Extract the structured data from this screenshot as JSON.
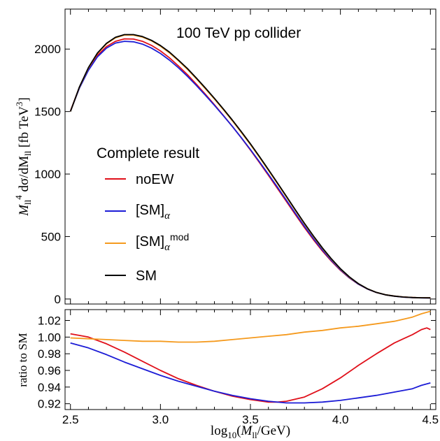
{
  "chart_data": [
    {
      "type": "line",
      "title": "100 TeV pp collider",
      "ylabel": "M_ll^4 dσ/dM_ll [fb TeV^3]",
      "xlim": [
        2.47,
        4.53
      ],
      "ylim": [
        -40,
        2320
      ],
      "x_ticks": [
        "2.5",
        "3.0",
        "3.5",
        "4.0",
        "4.5"
      ],
      "y_ticks": [
        0,
        500,
        1000,
        1500,
        2000
      ],
      "legend_title": "Complete result",
      "legend_placement": "center-left",
      "grid": false,
      "series": [
        {
          "name": "noEW",
          "color": "#e0101a",
          "x": [
            2.5,
            2.55,
            2.6,
            2.65,
            2.7,
            2.75,
            2.8,
            2.85,
            2.9,
            2.95,
            3.0,
            3.05,
            3.1,
            3.15,
            3.2,
            3.25,
            3.3,
            3.35,
            3.4,
            3.45,
            3.5,
            3.55,
            3.6,
            3.65,
            3.7,
            3.75,
            3.8,
            3.85,
            3.9,
            3.95,
            4.0,
            4.05,
            4.1,
            4.15,
            4.2,
            4.25,
            4.3,
            4.35,
            4.4,
            4.45,
            4.5
          ],
          "y": [
            1505,
            1695,
            1840,
            1950,
            2020,
            2062,
            2082,
            2080,
            2062,
            2030,
            1985,
            1930,
            1865,
            1795,
            1718,
            1638,
            1555,
            1468,
            1380,
            1288,
            1192,
            1092,
            990,
            885,
            780,
            675,
            572,
            475,
            384,
            302,
            230,
            168,
            118,
            80,
            52,
            34,
            23,
            16,
            12,
            10,
            9
          ]
        },
        {
          "name": "[SM]α",
          "color": "#1c1cd6",
          "x": [
            2.5,
            2.55,
            2.6,
            2.65,
            2.7,
            2.75,
            2.8,
            2.85,
            2.9,
            2.95,
            3.0,
            3.05,
            3.1,
            3.15,
            3.2,
            3.25,
            3.3,
            3.35,
            3.4,
            3.45,
            3.5,
            3.55,
            3.6,
            3.65,
            3.7,
            3.75,
            3.8,
            3.85,
            3.9,
            3.95,
            4.0,
            4.05,
            4.1,
            4.15,
            4.2,
            4.25,
            4.3,
            4.35,
            4.4,
            4.45,
            4.5
          ],
          "y": [
            1502,
            1688,
            1830,
            1938,
            2008,
            2048,
            2062,
            2058,
            2040,
            2008,
            1965,
            1912,
            1850,
            1782,
            1708,
            1630,
            1550,
            1466,
            1380,
            1290,
            1196,
            1098,
            998,
            895,
            790,
            685,
            582,
            484,
            392,
            308,
            234,
            170,
            119,
            80,
            52,
            33,
            22,
            15,
            11,
            9,
            8
          ]
        },
        {
          "name": "[SM]α^mod",
          "color": "#f59a1e",
          "x": [
            2.5,
            2.55,
            2.6,
            2.65,
            2.7,
            2.75,
            2.8,
            2.85,
            2.9,
            2.95,
            3.0,
            3.05,
            3.1,
            3.15,
            3.2,
            3.25,
            3.3,
            3.35,
            3.4,
            3.45,
            3.5,
            3.55,
            3.6,
            3.65,
            3.7,
            3.75,
            3.8,
            3.85,
            3.9,
            3.95,
            4.0,
            4.05,
            4.1,
            4.15,
            4.2,
            4.25,
            4.3,
            4.35,
            4.4,
            4.45,
            4.5
          ],
          "y": [
            1500,
            1696,
            1848,
            1965,
            2042,
            2090,
            2112,
            2112,
            2096,
            2066,
            2023,
            1970,
            1906,
            1838,
            1762,
            1682,
            1600,
            1514,
            1425,
            1332,
            1236,
            1134,
            1030,
            923,
            815,
            707,
            601,
            500,
            405,
            318,
            241,
            175,
            122,
            82,
            53,
            34,
            23,
            16,
            12,
            10,
            9
          ]
        },
        {
          "name": "SM",
          "color": "#000000",
          "x": [
            2.5,
            2.55,
            2.6,
            2.65,
            2.7,
            2.75,
            2.8,
            2.85,
            2.9,
            2.95,
            3.0,
            3.05,
            3.1,
            3.15,
            3.2,
            3.25,
            3.3,
            3.35,
            3.4,
            3.45,
            3.5,
            3.55,
            3.6,
            3.65,
            3.7,
            3.75,
            3.8,
            3.85,
            3.9,
            3.95,
            4.0,
            4.05,
            4.1,
            4.15,
            4.2,
            4.25,
            4.3,
            4.35,
            4.4,
            4.45,
            4.5
          ],
          "y": [
            1500,
            1698,
            1852,
            1968,
            2046,
            2094,
            2116,
            2116,
            2100,
            2070,
            2028,
            1976,
            1912,
            1844,
            1768,
            1688,
            1606,
            1520,
            1431,
            1338,
            1242,
            1140,
            1036,
            929,
            821,
            713,
            606,
            505,
            409,
            321,
            243,
            177,
            123,
            82,
            53,
            34,
            23,
            16,
            12,
            10,
            9
          ]
        }
      ]
    },
    {
      "type": "line",
      "xlabel": "log10(M_ll/GeV)",
      "ylabel": "ratio to SM",
      "xlim": [
        2.47,
        4.53
      ],
      "ylim": [
        0.913,
        1.033
      ],
      "x_ticks": [
        "2.5",
        "3.0",
        "3.5",
        "4.0",
        "4.5"
      ],
      "y_ticks": [
        "0.92",
        "0.94",
        "0.96",
        "0.98",
        "1.00",
        "1.02"
      ],
      "series": [
        {
          "name": "noEW",
          "color": "#e0101a",
          "x": [
            2.5,
            2.6,
            2.7,
            2.8,
            2.9,
            3.0,
            3.1,
            3.2,
            3.3,
            3.4,
            3.5,
            3.6,
            3.65,
            3.7,
            3.8,
            3.9,
            4.0,
            4.1,
            4.2,
            4.3,
            4.35,
            4.4,
            4.45,
            4.48,
            4.5
          ],
          "y": [
            1.004,
            1.0,
            0.992,
            0.982,
            0.971,
            0.96,
            0.95,
            0.942,
            0.935,
            0.929,
            0.925,
            0.922,
            0.922,
            0.923,
            0.928,
            0.938,
            0.951,
            0.966,
            0.98,
            0.993,
            0.998,
            1.003,
            1.009,
            1.011,
            1.009
          ]
        },
        {
          "name": "[SM]α",
          "color": "#1c1cd6",
          "x": [
            2.5,
            2.6,
            2.7,
            2.8,
            2.9,
            3.0,
            3.1,
            3.2,
            3.3,
            3.4,
            3.5,
            3.6,
            3.7,
            3.8,
            3.9,
            4.0,
            4.1,
            4.2,
            4.3,
            4.4,
            4.45,
            4.5
          ],
          "y": [
            0.993,
            0.987,
            0.979,
            0.97,
            0.962,
            0.954,
            0.947,
            0.941,
            0.935,
            0.93,
            0.926,
            0.923,
            0.921,
            0.921,
            0.922,
            0.924,
            0.927,
            0.93,
            0.934,
            0.938,
            0.942,
            0.945
          ]
        },
        {
          "name": "[SM]α^mod",
          "color": "#f59a1e",
          "x": [
            2.5,
            2.6,
            2.7,
            2.8,
            2.9,
            3.0,
            3.1,
            3.2,
            3.3,
            3.4,
            3.5,
            3.6,
            3.7,
            3.8,
            3.9,
            4.0,
            4.1,
            4.2,
            4.3,
            4.4,
            4.45,
            4.5
          ],
          "y": [
            0.999,
            0.998,
            0.997,
            0.996,
            0.995,
            0.995,
            0.994,
            0.994,
            0.995,
            0.997,
            0.999,
            1.001,
            1.003,
            1.006,
            1.008,
            1.011,
            1.013,
            1.016,
            1.019,
            1.024,
            1.028,
            1.031
          ]
        }
      ]
    }
  ]
}
